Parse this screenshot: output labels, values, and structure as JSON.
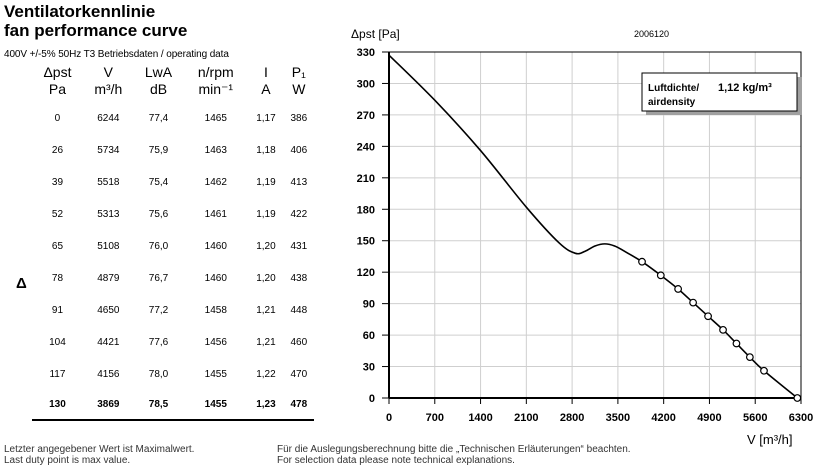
{
  "header": {
    "title_de": "Ventilatorkennlinie",
    "title_en": "fan performance curve",
    "operating_line": "400V +/-5% 50Hz T3 Betriebsdaten / operating data"
  },
  "table": {
    "columns": [
      {
        "symbol": "Δpst",
        "unit": "Pa"
      },
      {
        "symbol": "V",
        "unit": "m³/h"
      },
      {
        "symbol": "LwA",
        "unit": "dB"
      },
      {
        "symbol": "n/rpm",
        "unit": "min⁻¹"
      },
      {
        "symbol": "I",
        "unit": "A"
      },
      {
        "symbol": "P₁",
        "unit": "W"
      }
    ],
    "rows": [
      [
        "0",
        "6244",
        "77,4",
        "1465",
        "1,17",
        "386"
      ],
      [
        "26",
        "5734",
        "75,9",
        "1463",
        "1,18",
        "406"
      ],
      [
        "39",
        "5518",
        "75,4",
        "1462",
        "1,19",
        "413"
      ],
      [
        "52",
        "5313",
        "75,6",
        "1461",
        "1,19",
        "422"
      ],
      [
        "65",
        "5108",
        "76,0",
        "1460",
        "1,20",
        "431"
      ],
      [
        "78",
        "4879",
        "76,7",
        "1460",
        "1,20",
        "438"
      ],
      [
        "91",
        "4650",
        "77,2",
        "1458",
        "1,21",
        "448"
      ],
      [
        "104",
        "4421",
        "77,6",
        "1456",
        "1,21",
        "460"
      ],
      [
        "117",
        "4156",
        "78,0",
        "1455",
        "1,22",
        "470"
      ],
      [
        "130",
        "3869",
        "78,5",
        "1455",
        "1,23",
        "478"
      ]
    ],
    "marker": "Δ"
  },
  "notes": {
    "left_line1": "Letzter angegebener Wert ist Maximalwert.",
    "left_line2": "Last duty point is max value.",
    "right_line1": "Für die Auslegungsberechnung bitte die „Technischen Erläuterungen“ beachten.",
    "right_line2": "For selection data please note technical explanations."
  },
  "chart_data": {
    "type": "line",
    "code": "2006120",
    "ylabel": "Δpst [Pa]",
    "xlabel": "V [m³/h]",
    "xlim": [
      0,
      6300
    ],
    "ylim": [
      0,
      330
    ],
    "xticks": [
      0,
      700,
      1400,
      2100,
      2800,
      3500,
      4200,
      4900,
      5600,
      6300
    ],
    "yticks": [
      0,
      30,
      60,
      90,
      120,
      150,
      180,
      210,
      240,
      270,
      300,
      330
    ],
    "grid": true,
    "density_label": "Luftdichte/ airdensity",
    "density_value": "1,12 kg/m³",
    "curve": {
      "x": [
        0,
        700,
        1400,
        2100,
        2600,
        2850,
        3000,
        3150,
        3300,
        3450,
        3600,
        3869,
        4156,
        4421,
        4650,
        4879,
        5108,
        5313,
        5518,
        5734,
        6244
      ],
      "y": [
        327,
        284,
        236,
        182,
        148,
        138,
        140,
        145,
        147,
        145,
        140,
        130,
        117,
        104,
        91,
        78,
        65,
        52,
        39,
        26,
        0
      ]
    },
    "duty_points": {
      "x": [
        3869,
        4156,
        4421,
        4650,
        4879,
        5108,
        5313,
        5518,
        5734,
        6244
      ],
      "y": [
        130,
        117,
        104,
        91,
        78,
        65,
        52,
        39,
        26,
        0
      ]
    }
  }
}
